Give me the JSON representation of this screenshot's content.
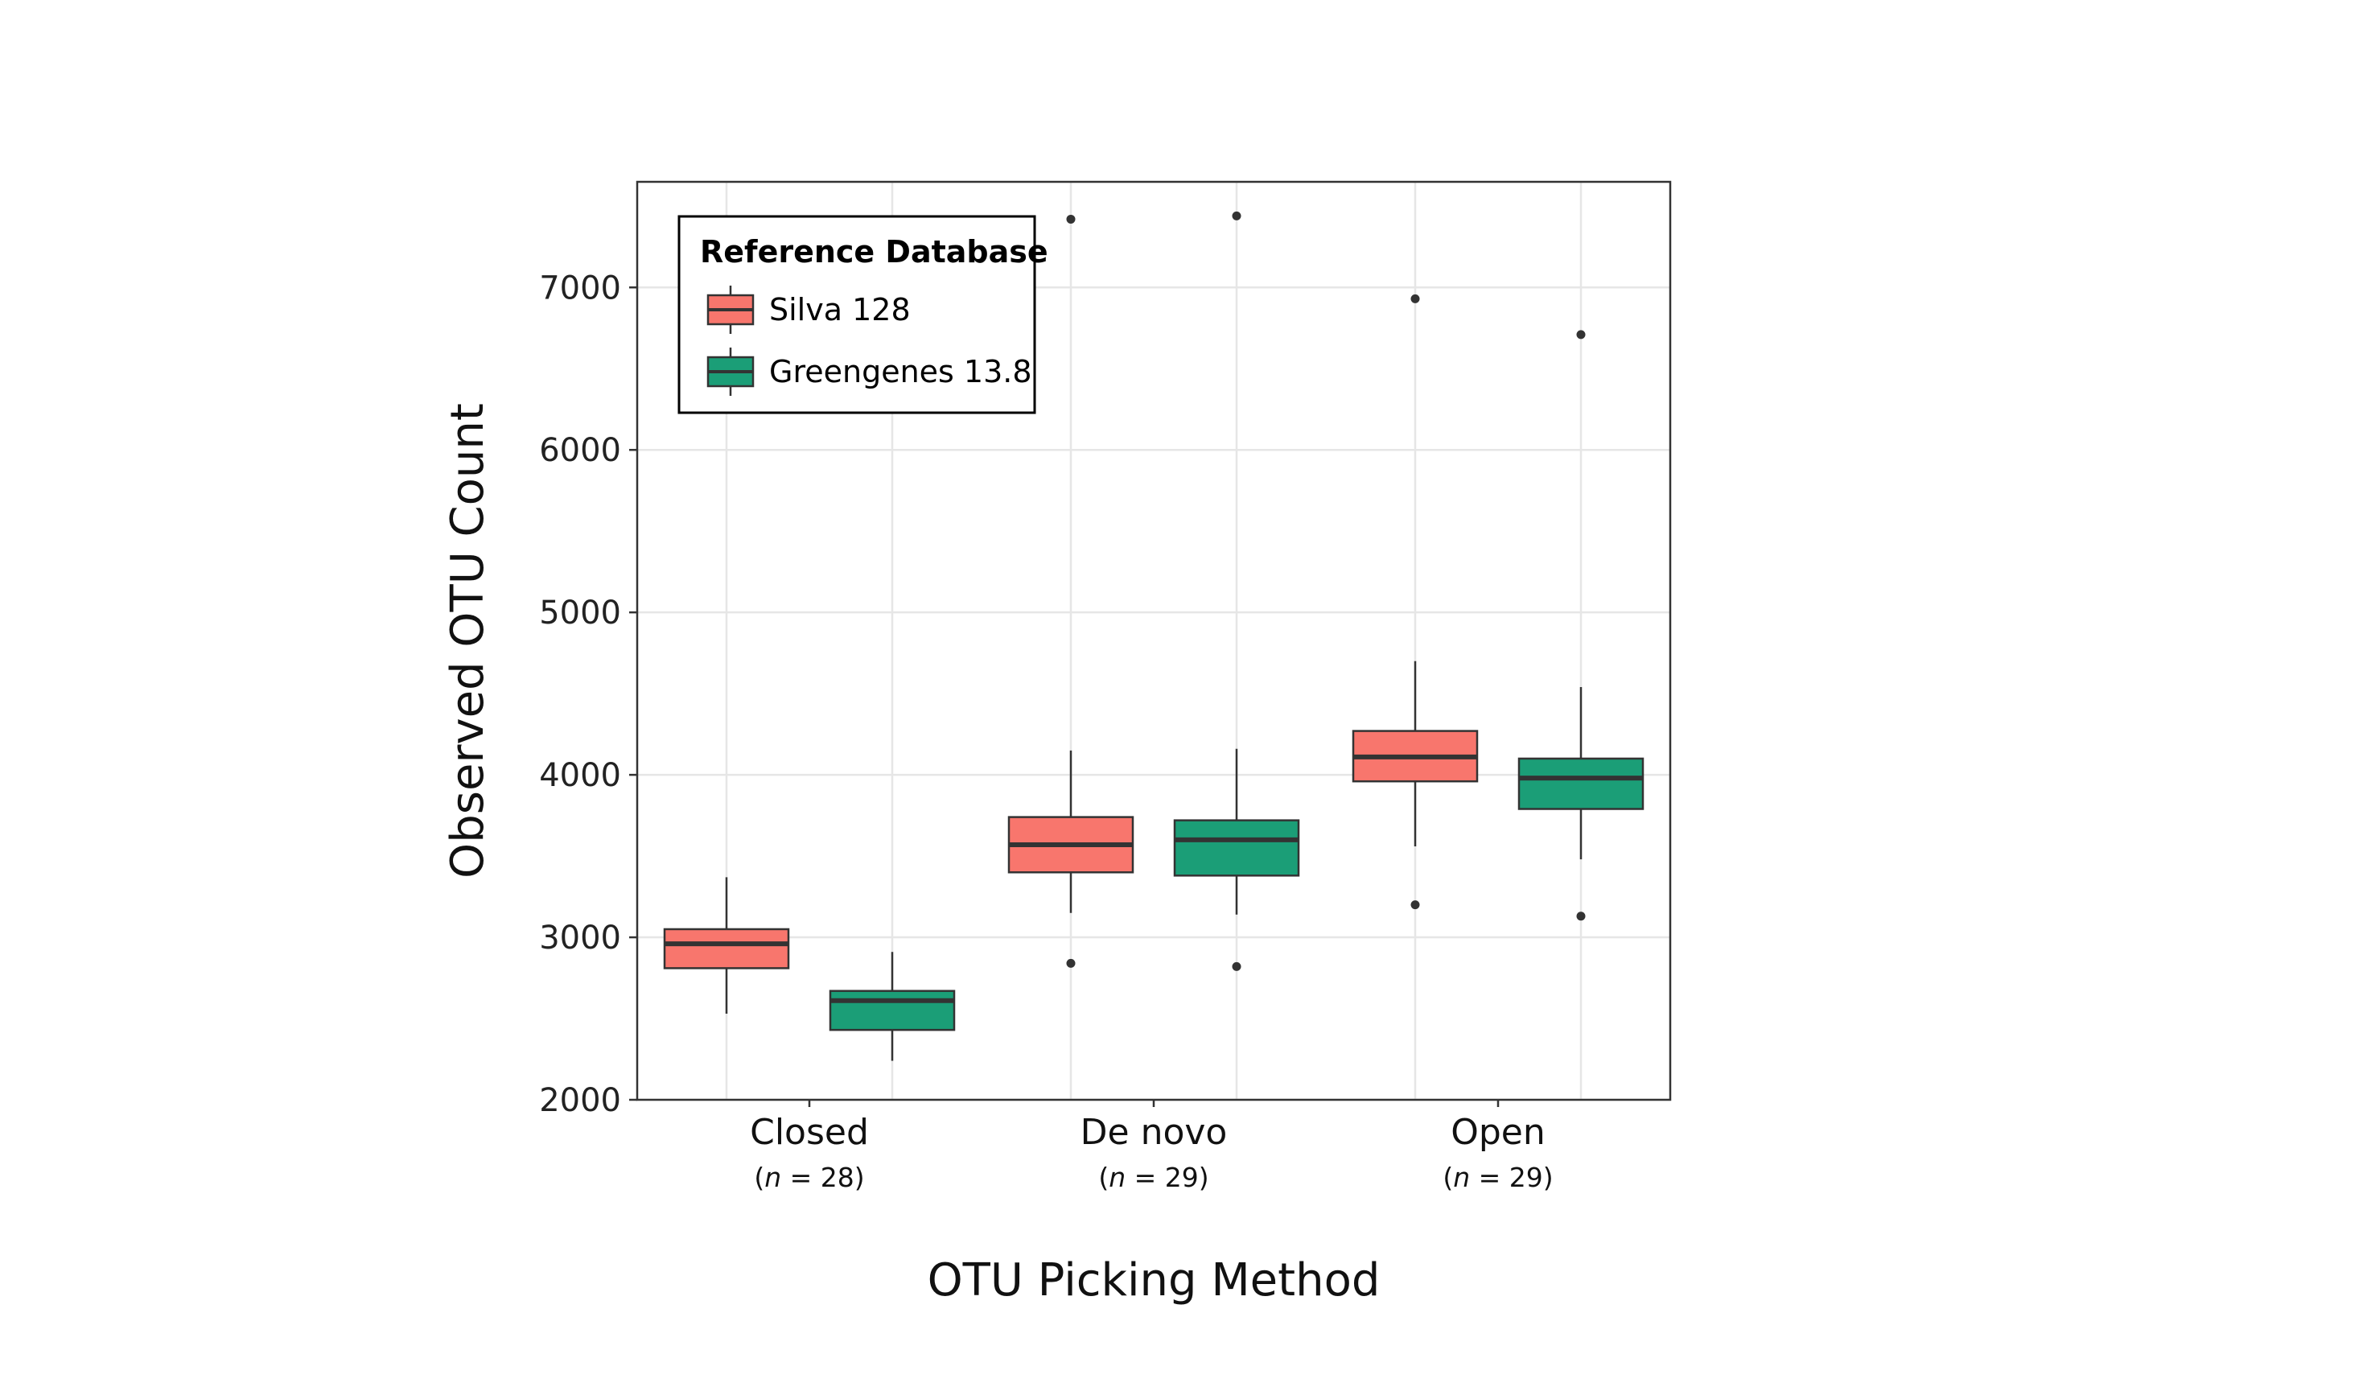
{
  "chart_data": {
    "type": "box",
    "xlabel": "OTU Picking Method",
    "ylabel": "Observed OTU Count",
    "ylim": [
      2000,
      7650
    ],
    "yticks": [
      2000,
      3000,
      4000,
      5000,
      6000,
      7000
    ],
    "grid": true,
    "categories": [
      {
        "name": "Closed",
        "n_label": "28"
      },
      {
        "name": "De novo",
        "n_label": "29"
      },
      {
        "name": "Open",
        "n_label": "29"
      }
    ],
    "legend": {
      "title": "Reference Database",
      "placement": "top-left"
    },
    "series": [
      {
        "name": "Silva 128",
        "color": "#F8766D",
        "boxes": [
          {
            "min": 2530,
            "q1": 2810,
            "median": 2960,
            "q3": 3050,
            "max": 3370,
            "outliers": []
          },
          {
            "min": 3150,
            "q1": 3400,
            "median": 3570,
            "q3": 3740,
            "max": 4150,
            "outliers": [
              2840,
              7420
            ]
          },
          {
            "min": 3560,
            "q1": 3960,
            "median": 4110,
            "q3": 4270,
            "max": 4700,
            "outliers": [
              3200,
              6930
            ]
          }
        ]
      },
      {
        "name": "Greengenes 13.8",
        "color": "#1B9E77",
        "boxes": [
          {
            "min": 2240,
            "q1": 2430,
            "median": 2610,
            "q3": 2670,
            "max": 2910,
            "outliers": []
          },
          {
            "min": 3140,
            "q1": 3380,
            "median": 3600,
            "q3": 3720,
            "max": 4160,
            "outliers": [
              2820,
              7440
            ]
          },
          {
            "min": 3480,
            "q1": 3790,
            "median": 3980,
            "q3": 4100,
            "max": 4540,
            "outliers": [
              3130,
              6710
            ]
          }
        ]
      }
    ]
  }
}
